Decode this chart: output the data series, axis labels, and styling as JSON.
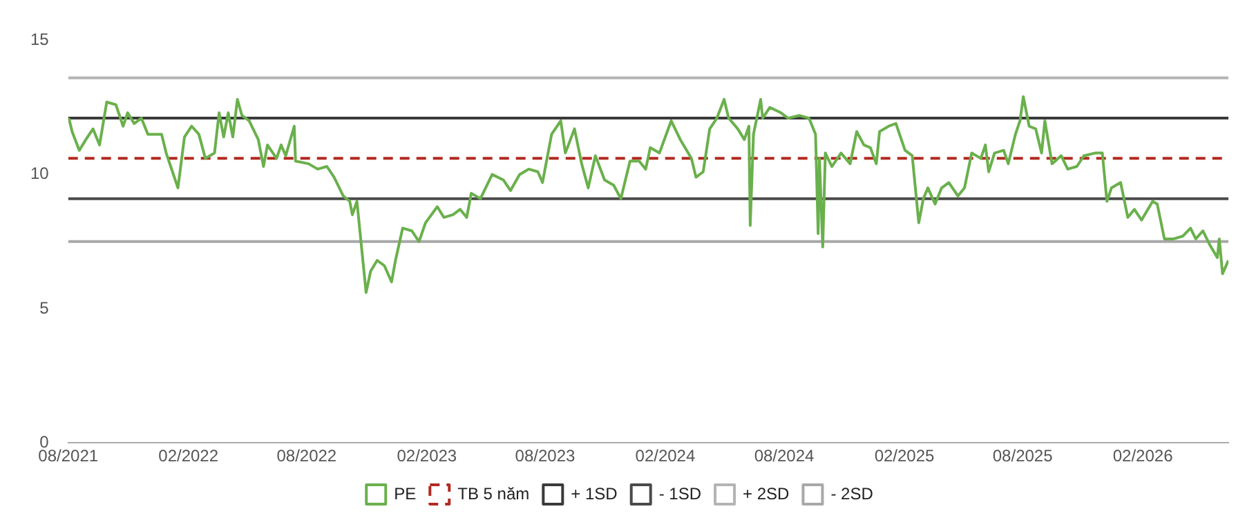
{
  "chart_data": {
    "type": "line",
    "xlim": [
      "2021-08-01",
      "2026-06-12"
    ],
    "ylim": [
      0,
      15
    ],
    "yticks": [
      0,
      5,
      10,
      15
    ],
    "xticks": [
      {
        "value": "2021-08-01",
        "label": "08/2021"
      },
      {
        "value": "2022-02-01",
        "label": "02/2022"
      },
      {
        "value": "2022-08-01",
        "label": "08/2022"
      },
      {
        "value": "2023-02-01",
        "label": "02/2023"
      },
      {
        "value": "2023-08-01",
        "label": "08/2023"
      },
      {
        "value": "2024-02-01",
        "label": "02/2024"
      },
      {
        "value": "2024-08-01",
        "label": "08/2024"
      },
      {
        "value": "2025-02-01",
        "label": "02/2025"
      },
      {
        "value": "2025-08-01",
        "label": "08/2025"
      },
      {
        "value": "2026-02-01",
        "label": "02/2026"
      }
    ],
    "grid": false,
    "legend": "bottom",
    "marker": "none",
    "series": [
      {
        "name": "PE",
        "color": "#6ab04c",
        "x": [
          "2021-08-02",
          "2021-08-07",
          "2021-08-18",
          "2021-08-28",
          "2021-09-08",
          "2021-09-18",
          "2021-09-29",
          "2021-10-13",
          "2021-10-24",
          "2021-10-31",
          "2021-11-10",
          "2021-11-21",
          "2021-12-01",
          "2021-12-22",
          "2021-12-29",
          "2022-01-16",
          "2022-01-26",
          "2022-02-06",
          "2022-02-17",
          "2022-02-27",
          "2022-03-13",
          "2022-03-20",
          "2022-03-27",
          "2022-04-03",
          "2022-04-10",
          "2022-04-17",
          "2022-04-24",
          "2022-05-05",
          "2022-05-19",
          "2022-05-27",
          "2022-06-02",
          "2022-06-16",
          "2022-06-23",
          "2022-06-30",
          "2022-07-13",
          "2022-07-15",
          "2022-08-04",
          "2022-08-18",
          "2022-09-01",
          "2022-09-12",
          "2022-09-26",
          "2022-10-06",
          "2022-10-10",
          "2022-10-17",
          "2022-10-31",
          "2022-11-07",
          "2022-11-17",
          "2022-11-28",
          "2022-12-09",
          "2022-12-15",
          "2022-12-26",
          "2023-01-09",
          "2023-01-20",
          "2023-01-30",
          "2023-02-17",
          "2023-02-27",
          "2023-03-13",
          "2023-03-24",
          "2023-04-03",
          "2023-04-10",
          "2023-04-24",
          "2023-05-12",
          "2023-05-29",
          "2023-06-09",
          "2023-06-23",
          "2023-07-07",
          "2023-07-21",
          "2023-07-28",
          "2023-08-11",
          "2023-08-25",
          "2023-09-01",
          "2023-09-15",
          "2023-09-26",
          "2023-10-06",
          "2023-10-17",
          "2023-10-31",
          "2023-11-14",
          "2023-11-25",
          "2023-12-09",
          "2023-12-23",
          "2024-01-02",
          "2024-01-09",
          "2024-01-23",
          "2024-02-10",
          "2024-02-24",
          "2024-03-12",
          "2024-03-19",
          "2024-03-30",
          "2024-04-09",
          "2024-04-20",
          "2024-05-01",
          "2024-05-08",
          "2024-05-22",
          "2024-06-01",
          "2024-06-08",
          "2024-06-10",
          "2024-06-15",
          "2024-06-26",
          "2024-06-29",
          "2024-07-10",
          "2024-07-27",
          "2024-08-07",
          "2024-08-24",
          "2024-09-08",
          "2024-09-18",
          "2024-09-22",
          "2024-09-24",
          "2024-09-29",
          "2024-10-03",
          "2024-10-13",
          "2024-10-27",
          "2024-11-10",
          "2024-11-20",
          "2024-12-01",
          "2024-12-11",
          "2024-12-20",
          "2024-12-25",
          "2025-01-08",
          "2025-01-19",
          "2025-02-02",
          "2025-02-13",
          "2025-02-23",
          "2025-03-02",
          "2025-03-09",
          "2025-03-20",
          "2025-03-30",
          "2025-04-10",
          "2025-04-24",
          "2025-05-04",
          "2025-05-15",
          "2025-05-29",
          "2025-06-05",
          "2025-06-10",
          "2025-06-19",
          "2025-07-03",
          "2025-07-10",
          "2025-07-21",
          "2025-07-28",
          "2025-08-02",
          "2025-08-11",
          "2025-08-21",
          "2025-08-30",
          "2025-09-04",
          "2025-09-15",
          "2025-09-29",
          "2025-10-09",
          "2025-10-23",
          "2025-11-03",
          "2025-11-20",
          "2025-12-01",
          "2025-12-08",
          "2025-12-15",
          "2025-12-29",
          "2026-01-09",
          "2026-01-19",
          "2026-01-30",
          "2026-02-16",
          "2026-02-23",
          "2026-03-06",
          "2026-03-20",
          "2026-04-03",
          "2026-04-15",
          "2026-04-23",
          "2026-05-04",
          "2026-05-14",
          "2026-05-26",
          "2026-05-29",
          "2026-06-03",
          "2026-06-12"
        ],
        "values": [
          12.1,
          11.6,
          10.9,
          11.3,
          11.7,
          11.1,
          12.7,
          12.6,
          11.8,
          12.3,
          11.9,
          12.1,
          11.5,
          11.5,
          10.8,
          9.5,
          11.4,
          11.8,
          11.5,
          10.6,
          10.8,
          12.3,
          11.4,
          12.3,
          11.4,
          12.8,
          12.2,
          12.0,
          11.3,
          10.3,
          11.1,
          10.6,
          11.1,
          10.7,
          11.8,
          10.5,
          10.4,
          10.2,
          10.3,
          9.9,
          9.2,
          9.0,
          8.5,
          9.0,
          5.6,
          6.4,
          6.8,
          6.6,
          6.0,
          6.8,
          8.0,
          7.9,
          7.5,
          8.2,
          8.8,
          8.4,
          8.5,
          8.7,
          8.4,
          9.3,
          9.1,
          10.0,
          9.8,
          9.4,
          10.0,
          10.2,
          10.1,
          9.7,
          11.5,
          12.0,
          10.8,
          11.7,
          10.4,
          9.5,
          10.7,
          9.8,
          9.6,
          9.1,
          10.5,
          10.5,
          10.2,
          11.0,
          10.8,
          12.0,
          11.3,
          10.6,
          9.9,
          10.1,
          11.7,
          12.1,
          12.8,
          12.1,
          11.7,
          11.3,
          11.8,
          8.1,
          11.5,
          12.8,
          12.1,
          12.5,
          12.3,
          12.1,
          12.2,
          12.1,
          11.5,
          7.8,
          10.6,
          7.3,
          10.8,
          10.3,
          10.8,
          10.4,
          11.6,
          11.1,
          11.0,
          10.4,
          11.6,
          11.8,
          11.9,
          10.9,
          10.7,
          8.2,
          9.1,
          9.5,
          8.9,
          9.5,
          9.7,
          9.2,
          9.5,
          10.8,
          10.6,
          11.1,
          10.1,
          10.8,
          10.9,
          10.4,
          11.5,
          12.0,
          12.9,
          11.8,
          11.7,
          10.8,
          12.0,
          10.4,
          10.7,
          10.2,
          10.3,
          10.7,
          10.8,
          10.8,
          9.0,
          9.5,
          9.7,
          8.4,
          8.7,
          8.3,
          9.0,
          8.9,
          7.6,
          7.6,
          7.7,
          8.0,
          7.6,
          7.9,
          7.4,
          6.9,
          7.6,
          6.3,
          6.8
        ]
      },
      {
        "name": "TB 5 năm",
        "color": "#b22a20",
        "line_style": "dashed",
        "x": [
          "2021-08-01",
          "2026-06-12"
        ],
        "values": [
          10.6,
          10.6
        ]
      },
      {
        "name": "+ 1SD",
        "color": "#3a3a3a",
        "x": [
          "2021-08-01",
          "2026-06-12"
        ],
        "values": [
          12.1,
          12.1
        ]
      },
      {
        "name": "- 1SD",
        "color": "#4a4a4a",
        "x": [
          "2021-08-01",
          "2026-06-12"
        ],
        "values": [
          9.1,
          9.1
        ]
      },
      {
        "name": "+ 2SD",
        "color": "#b4b4b4",
        "x": [
          "2021-08-01",
          "2026-06-12"
        ],
        "values": [
          13.6,
          13.6
        ]
      },
      {
        "name": "- 2SD",
        "color": "#a8a8a8",
        "x": [
          "2021-08-01",
          "2026-06-12"
        ],
        "values": [
          7.5,
          7.5
        ]
      }
    ]
  }
}
